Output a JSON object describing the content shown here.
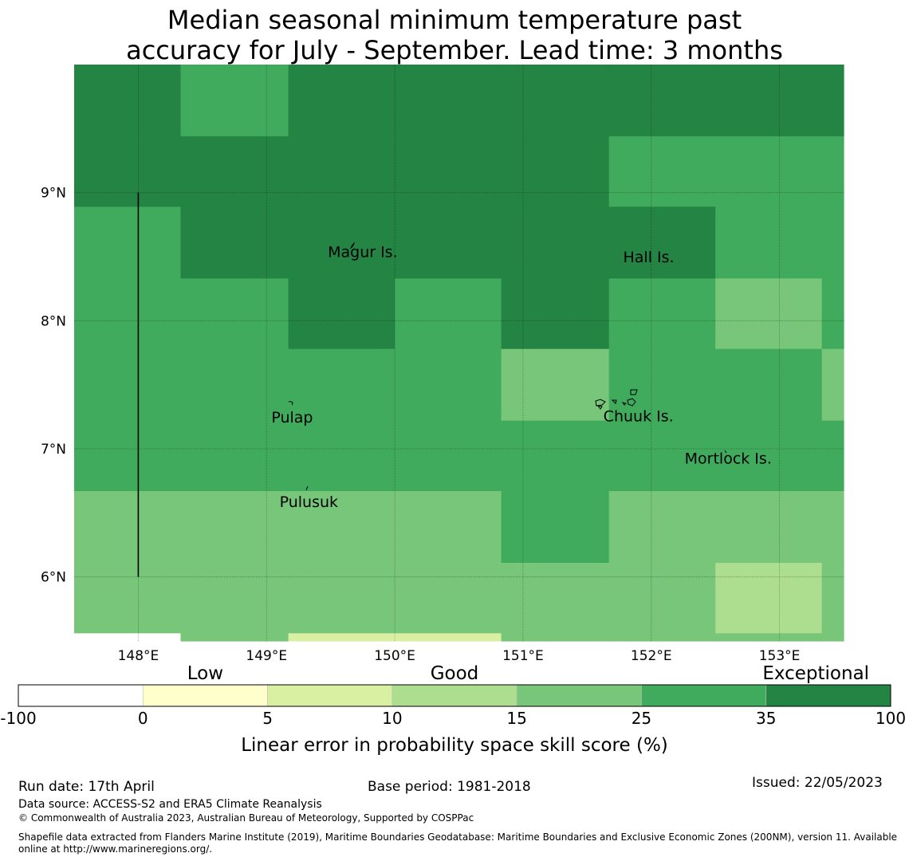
{
  "title": {
    "line1": "Median seasonal minimum temperature past",
    "line2": "accuracy for July - September. Lead time: 3 months"
  },
  "map": {
    "lon_range": [
      147.5,
      153.5
    ],
    "lat_range": [
      5.5,
      10.0
    ],
    "lon_ticks": [
      {
        "value": 148,
        "label": "148°E"
      },
      {
        "value": 149,
        "label": "149°E"
      },
      {
        "value": 150,
        "label": "150°E"
      },
      {
        "value": 151,
        "label": "151°E"
      },
      {
        "value": 152,
        "label": "152°E"
      },
      {
        "value": 153,
        "label": "153°E"
      }
    ],
    "lat_ticks": [
      {
        "value": 9,
        "label": "9°N"
      },
      {
        "value": 8,
        "label": "8°N"
      },
      {
        "value": 7,
        "label": "7°N"
      },
      {
        "value": 6,
        "label": "6°N"
      }
    ],
    "grid_lines": true,
    "cell_col_edges_lon": [
      147.5,
      148.33,
      149.17,
      150.0,
      150.83,
      151.67,
      152.5,
      153.33,
      153.5
    ],
    "cell_row_edges_lat": [
      10.0,
      9.44,
      8.89,
      8.33,
      7.78,
      7.22,
      6.67,
      6.11,
      5.56,
      5.5
    ],
    "skill_class_grid": [
      [
        6,
        5,
        6,
        6,
        6,
        6,
        6,
        6
      ],
      [
        6,
        6,
        6,
        6,
        6,
        5,
        5,
        5
      ],
      [
        5,
        6,
        6,
        6,
        6,
        6,
        5,
        5
      ],
      [
        5,
        5,
        6,
        5,
        6,
        5,
        4,
        5
      ],
      [
        5,
        5,
        5,
        5,
        4,
        5,
        5,
        4
      ],
      [
        5,
        5,
        5,
        5,
        5,
        5,
        5,
        5
      ],
      [
        4,
        4,
        4,
        4,
        5,
        4,
        4,
        4
      ],
      [
        4,
        4,
        4,
        4,
        4,
        4,
        3,
        4
      ],
      [
        0,
        4,
        2,
        2,
        4,
        4,
        4,
        4
      ]
    ],
    "boundary_line": {
      "lon": 148.0,
      "lat_from": 9.0,
      "lat_to": 6.0
    },
    "places": [
      {
        "name": "Magur Is.",
        "lon": 149.75,
        "lat": 8.53
      },
      {
        "name": "Hall Is.",
        "lon": 151.98,
        "lat": 8.49
      },
      {
        "name": "Pulap",
        "lon": 149.2,
        "lat": 7.24
      },
      {
        "name": "Chuuk Is.",
        "lon": 151.9,
        "lat": 7.25
      },
      {
        "name": "Mortlock Is.",
        "lon": 152.6,
        "lat": 6.92
      },
      {
        "name": "Pulusuk",
        "lon": 149.33,
        "lat": 6.58
      }
    ]
  },
  "legend": {
    "category_labels": [
      {
        "text": "Low",
        "at_index": 1.5
      },
      {
        "text": "Good",
        "at_index": 3.5
      },
      {
        "text": "Exceptional",
        "at_index": 6.4
      }
    ],
    "boundaries": [
      "-100",
      "0",
      "5",
      "10",
      "15",
      "25",
      "35",
      "100"
    ],
    "colors": [
      "#ffffff",
      "#ffffcc",
      "#d9f0a3",
      "#addd8e",
      "#78c679",
      "#41ab5d",
      "#238443"
    ],
    "axis_label": "Linear error in probability space skill score (%)"
  },
  "footer": {
    "run_date": "Run date: 17th April",
    "base_period": "Base period: 1981-2018",
    "issued": "Issued: 22/05/2023",
    "data_source": "Data source: ACCESS-S2 and ERA5 Climate Reanalysis",
    "copyright": "© Commonwealth of Australia 2023, Australian Bureau of Meteorology, Supported by COSPPac",
    "shapefile_line1": "Shapefile data extracted from Flanders Marine Institute (2019), Maritime Boundaries Geodatabase: Maritime Boundaries and Exclusive Economic Zones (200NM), version 11. Available",
    "shapefile_line2": "online at http://www.marineregions.org/."
  }
}
